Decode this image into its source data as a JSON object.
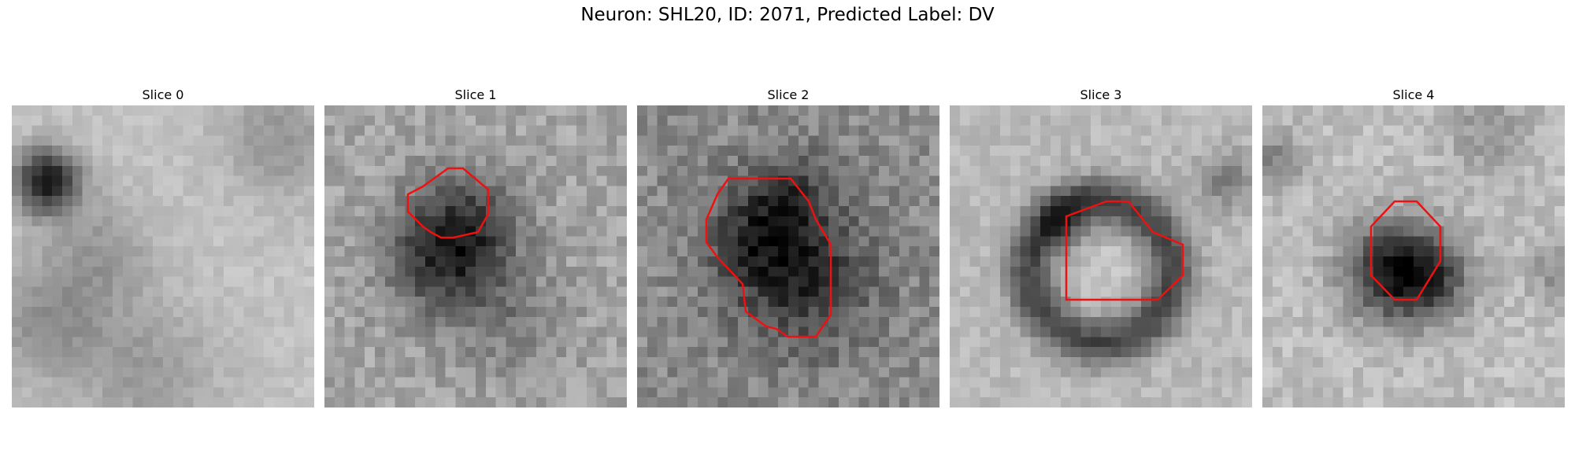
{
  "figure": {
    "title": "Neuron: SHL20, ID: 2071, Predicted Label: DV"
  },
  "slices": [
    {
      "label": "Slice 0",
      "has_contour": false
    },
    {
      "label": "Slice 1",
      "has_contour": true
    },
    {
      "label": "Slice 2",
      "has_contour": true
    },
    {
      "label": "Slice 3",
      "has_contour": true
    },
    {
      "label": "Slice 4",
      "has_contour": true
    }
  ],
  "colors": {
    "contour": "#ee1111",
    "background": "#ffffff"
  }
}
